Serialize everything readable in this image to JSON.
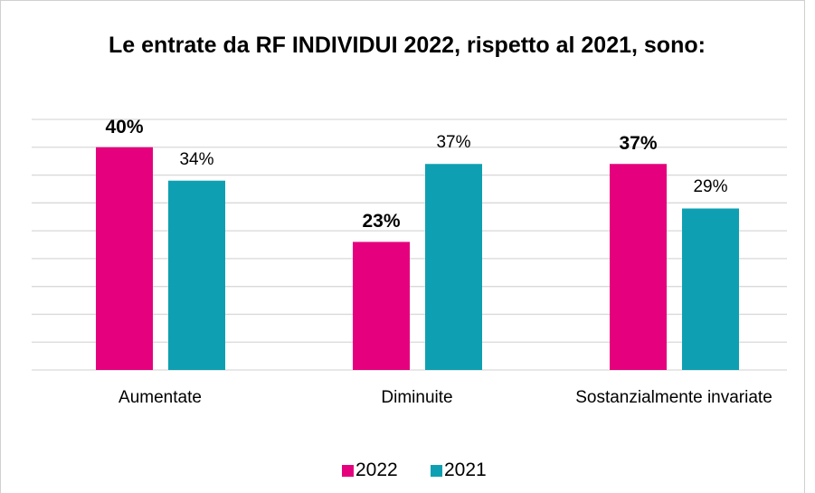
{
  "chart_data": {
    "type": "bar",
    "title": "Le entrate da RF INDIVIDUI 2022, rispetto al 2021, sono:",
    "categories": [
      "Aumentate",
      "Diminuite",
      "Sostanzialmente invariate"
    ],
    "series": [
      {
        "name": "2022",
        "color": "#e5007d",
        "values": [
          40,
          23,
          37
        ],
        "value_labels": [
          "40%",
          "23%",
          "37%"
        ]
      },
      {
        "name": "2021",
        "color": "#0ea0b2",
        "values": [
          34,
          37,
          29
        ],
        "value_labels": [
          "34%",
          "37%",
          "29%"
        ]
      }
    ],
    "ylim": [
      0,
      45
    ],
    "yticks": [
      0,
      5,
      10,
      15,
      20,
      25,
      30,
      35,
      40,
      45
    ],
    "grid": true,
    "legend": "bottom"
  }
}
